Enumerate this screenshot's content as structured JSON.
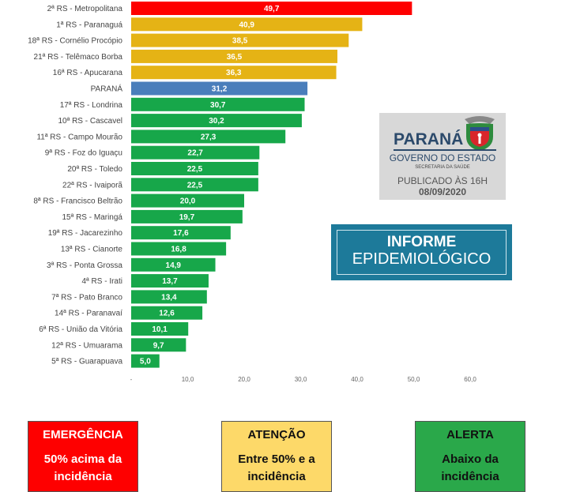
{
  "chart_data": {
    "type": "bar",
    "orientation": "horizontal",
    "categories": [
      "2ª RS - Metropolitana",
      "1ª RS - Paranaguá",
      "18ª RS - Cornélio Procópio",
      "21ª RS - Telêmaco Borba",
      "16ª RS - Apucarana",
      "PARANÁ",
      "17ª RS - Londrina",
      "10ª RS - Cascavel",
      "11ª RS - Campo Mourão",
      "9ª RS - Foz do Iguaçu",
      "20ª RS - Toledo",
      "22ª RS - Ivaiporã",
      "8ª RS - Francisco Beltrão",
      "15ª RS - Maringá",
      "19ª RS - Jacarezinho",
      "13ª RS - Cianorte",
      "3ª RS - Ponta Grossa",
      "4ª RS - Irati",
      "7ª RS - Pato Branco",
      "14ª RS - Paranavaí",
      "6ª RS - União da Vitória",
      "12ª RS - Umuarama",
      "5ª RS - Guarapuava"
    ],
    "values": [
      49.7,
      40.9,
      38.5,
      36.5,
      36.3,
      31.2,
      30.7,
      30.2,
      27.3,
      22.7,
      22.5,
      22.5,
      20.0,
      19.7,
      17.6,
      16.8,
      14.9,
      13.7,
      13.4,
      12.6,
      10.1,
      9.7,
      5.0
    ],
    "value_labels": [
      "49,7",
      "40,9",
      "38,5",
      "36,5",
      "36,3",
      "31,2",
      "30,7",
      "30,2",
      "27,3",
      "22,7",
      "22,5",
      "22,5",
      "20,0",
      "19,7",
      "17,6",
      "16,8",
      "14,9",
      "13,7",
      "13,4",
      "12,6",
      "10,1",
      "9,7",
      "5,0"
    ],
    "levels": [
      "emergencia",
      "atencao",
      "atencao",
      "atencao",
      "atencao",
      "parana",
      "alerta",
      "alerta",
      "alerta",
      "alerta",
      "alerta",
      "alerta",
      "alerta",
      "alerta",
      "alerta",
      "alerta",
      "alerta",
      "alerta",
      "alerta",
      "alerta",
      "alerta",
      "alerta",
      "alerta"
    ],
    "xlim": [
      0,
      60
    ],
    "xticks": [
      "-",
      "10,0",
      "20,0",
      "30,0",
      "40,0",
      "50,0",
      "60,0"
    ],
    "grid": false
  },
  "colors": {
    "emergencia": "#fe0000",
    "atencao": "#e5b315",
    "parana": "#4a7ebb",
    "alerta": "#17a74a",
    "box_red": "#fe0000",
    "box_yellow": "#fdd969",
    "box_green": "#2aa84a"
  },
  "logo": {
    "name": "PARANÁ",
    "gov": "GOVERNO DO ESTADO",
    "sec": "SECRETARIA DA SAÚDE",
    "published": "PUBLICADO ÀS 16H",
    "date": "08/09/2020"
  },
  "informe": {
    "line1": "INFORME",
    "line2": "EPIDEMIOLÓGICO"
  },
  "legend": [
    {
      "title": "EMERGÊNCIA",
      "desc": "50% acima da incidência"
    },
    {
      "title": "ATENÇÃO",
      "desc": "Entre 50% e a incidência"
    },
    {
      "title": "ALERTA",
      "desc": "Abaixo da incidência"
    }
  ]
}
